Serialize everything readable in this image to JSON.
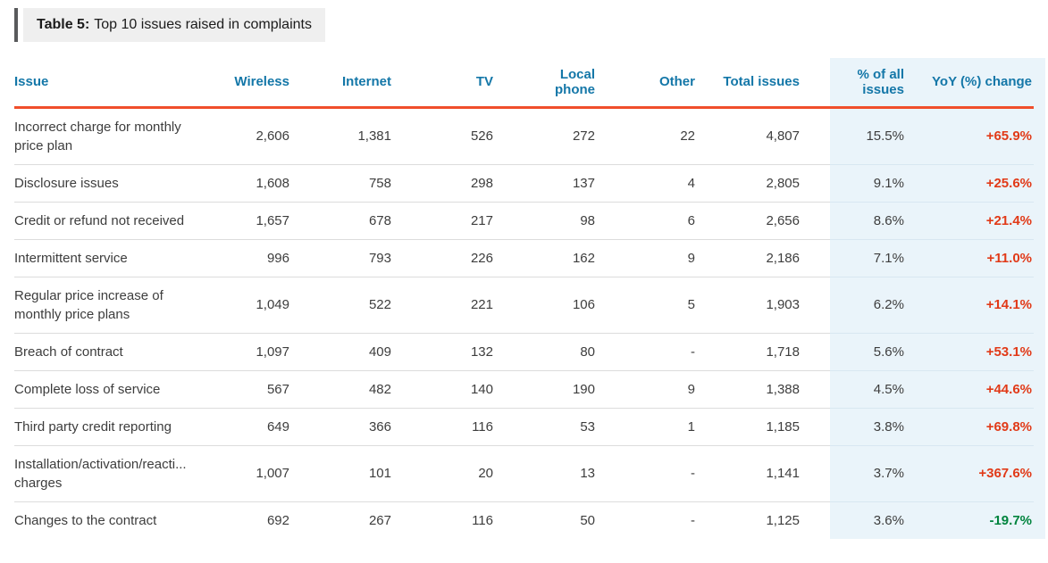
{
  "title": {
    "prefix": "Table 5:",
    "rest": "Top 10 issues raised in complaints"
  },
  "colors": {
    "header_text": "#1477a8",
    "accent_line": "#f04e2b",
    "increase_text": "#e13a18",
    "decrease_text": "#00843e",
    "highlight_bg": "#eaf4fa",
    "row_divider": "#dcdcdc",
    "highlight_divider": "#d8e7f1",
    "body_text": "#3d3d3d",
    "title_bar": "#595a5c",
    "title_bg": "#efefef"
  },
  "chart_data": {
    "type": "table",
    "title": "Table 5: Top 10 issues raised in complaints",
    "columns": [
      {
        "key": "issue",
        "label": "Issue",
        "align": "left"
      },
      {
        "key": "wireless",
        "label": "Wireless",
        "align": "right"
      },
      {
        "key": "internet",
        "label": "Internet",
        "align": "right"
      },
      {
        "key": "tv",
        "label": "TV",
        "align": "right"
      },
      {
        "key": "local",
        "label": "Local\nphone",
        "align": "right"
      },
      {
        "key": "other",
        "label": "Other",
        "align": "right"
      },
      {
        "key": "total",
        "label": "Total issues",
        "align": "right"
      },
      {
        "key": "pct",
        "label": "% of all\nissues",
        "align": "right"
      },
      {
        "key": "yoy",
        "label": "YoY (%) change",
        "align": "right"
      }
    ],
    "rows": [
      {
        "issue": "Incorrect charge for monthly\nprice plan",
        "wireless": "2,606",
        "internet": "1,381",
        "tv": "526",
        "local": "272",
        "other": "22",
        "total": "4,807",
        "pct": "15.5%",
        "yoy": "+65.9%",
        "trend": "up"
      },
      {
        "issue": "Disclosure issues",
        "wireless": "1,608",
        "internet": "758",
        "tv": "298",
        "local": "137",
        "other": "4",
        "total": "2,805",
        "pct": "9.1%",
        "yoy": "+25.6%",
        "trend": "up"
      },
      {
        "issue": "Credit or refund not received",
        "wireless": "1,657",
        "internet": "678",
        "tv": "217",
        "local": "98",
        "other": "6",
        "total": "2,656",
        "pct": "8.6%",
        "yoy": "+21.4%",
        "trend": "up"
      },
      {
        "issue": "Intermittent service",
        "wireless": "996",
        "internet": "793",
        "tv": "226",
        "local": "162",
        "other": "9",
        "total": "2,186",
        "pct": "7.1%",
        "yoy": "+11.0%",
        "trend": "up"
      },
      {
        "issue": "Regular price increase of\nmonthly price plans",
        "wireless": "1,049",
        "internet": "522",
        "tv": "221",
        "local": "106",
        "other": "5",
        "total": "1,903",
        "pct": "6.2%",
        "yoy": "+14.1%",
        "trend": "up"
      },
      {
        "issue": "Breach of contract",
        "wireless": "1,097",
        "internet": "409",
        "tv": "132",
        "local": "80",
        "other": "-",
        "total": "1,718",
        "pct": "5.6%",
        "yoy": "+53.1%",
        "trend": "up"
      },
      {
        "issue": "Complete loss of service",
        "wireless": "567",
        "internet": "482",
        "tv": "140",
        "local": "190",
        "other": "9",
        "total": "1,388",
        "pct": "4.5%",
        "yoy": "+44.6%",
        "trend": "up"
      },
      {
        "issue": "Third party credit reporting",
        "wireless": "649",
        "internet": "366",
        "tv": "116",
        "local": "53",
        "other": "1",
        "total": "1,185",
        "pct": "3.8%",
        "yoy": "+69.8%",
        "trend": "up"
      },
      {
        "issue": "Installation/activation/reacti...\ncharges",
        "wireless": "1,007",
        "internet": "101",
        "tv": "20",
        "local": "13",
        "other": "-",
        "total": "1,141",
        "pct": "3.7%",
        "yoy": "+367.6%",
        "trend": "up"
      },
      {
        "issue": "Changes to the contract",
        "wireless": "692",
        "internet": "267",
        "tv": "116",
        "local": "50",
        "other": "-",
        "total": "1,125",
        "pct": "3.6%",
        "yoy": "-19.7%",
        "trend": "down"
      }
    ]
  }
}
